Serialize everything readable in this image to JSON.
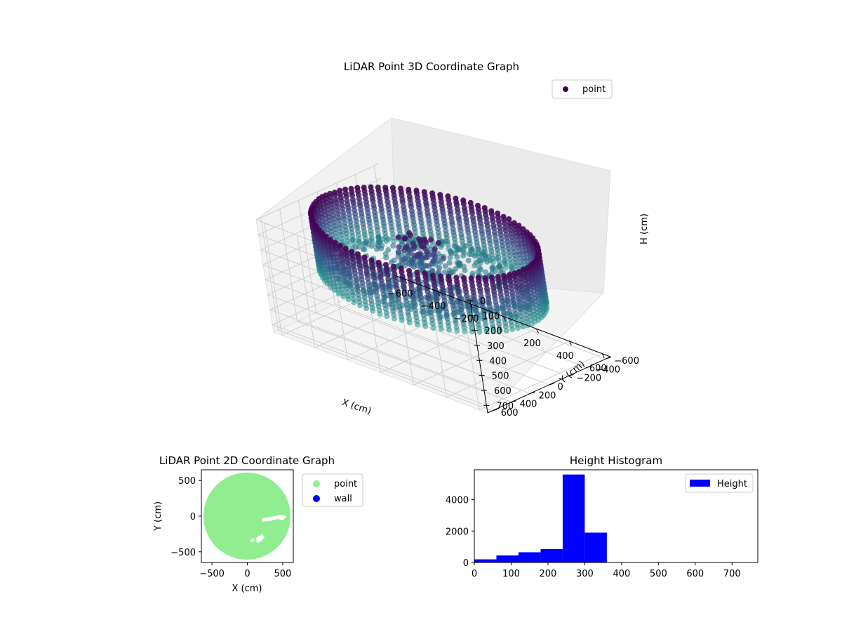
{
  "figure": {
    "background": "#ffffff"
  },
  "chart_data": [
    {
      "type": "scatter",
      "projection": "3d",
      "title": "LiDAR Point 3D Coordinate Graph",
      "xlabel": "X (cm)",
      "ylabel": "Y (cm)",
      "zlabel": "H (cm)",
      "xlim": [
        -650,
        650
      ],
      "ylim": [
        -650,
        650
      ],
      "zlim": [
        750,
        0
      ],
      "z_inverted": true,
      "x_ticks": [
        -600,
        -400,
        -200,
        0,
        200,
        400,
        600
      ],
      "x_tick_labels": [
        "−600",
        "−400",
        "−200",
        "0",
        "200",
        "400",
        "600"
      ],
      "y_ticks": [
        -600,
        -400,
        -200,
        0,
        200,
        400,
        600
      ],
      "y_tick_labels": [
        "−600",
        "−400",
        "−200",
        "0",
        "200",
        "400",
        "600"
      ],
      "z_ticks": [
        0,
        100,
        200,
        300,
        400,
        500,
        600,
        700
      ],
      "z_tick_labels": [
        "0",
        "100",
        "200",
        "300",
        "400",
        "500",
        "600",
        "700"
      ],
      "grid": true,
      "colormap": "viridis",
      "color_high": "#440154",
      "color_mid": "#3b528b",
      "color_low": "#21918c",
      "legend": {
        "position": "top-right",
        "entries": [
          {
            "label": "point",
            "color": "#440154",
            "marker": "circle"
          }
        ]
      },
      "series": [
        {
          "name": "point",
          "description_values": {
            "outer_wall_radius_cm": 600,
            "wall_height_range_cm": [
              0,
              360
            ],
            "floor_height_cm": 300,
            "center_object_height_cm": [
              40,
              250
            ]
          }
        }
      ]
    },
    {
      "type": "scatter",
      "title": "LiDAR Point 2D Coordinate Graph",
      "xlabel": "X (cm)",
      "ylabel": "Y (cm)",
      "xlim": [
        -650,
        650
      ],
      "ylim": [
        -650,
        650
      ],
      "x_ticks": [
        -500,
        0,
        500
      ],
      "x_tick_labels": [
        "−500",
        "0",
        "500"
      ],
      "y_ticks": [
        -500,
        0,
        500
      ],
      "y_tick_labels": [
        "−500",
        "0",
        "500"
      ],
      "grid": false,
      "legend": {
        "position": "outside-right",
        "entries": [
          {
            "label": "point",
            "color": "#90ee90"
          },
          {
            "label": "wall",
            "color": "#0000ff"
          }
        ]
      },
      "series": [
        {
          "name": "point",
          "color": "#90ee90",
          "shape": "disk",
          "center": [
            0,
            0
          ],
          "radius": 620
        },
        {
          "name": "wall",
          "color": "#0000ff",
          "points": []
        }
      ]
    },
    {
      "type": "bar",
      "subtype": "histogram",
      "title": "Height Histogram",
      "xlabel": "",
      "ylabel": "",
      "xlim": [
        0,
        770
      ],
      "ylim": [
        0,
        5900
      ],
      "x_ticks": [
        0,
        100,
        200,
        300,
        400,
        500,
        600,
        700
      ],
      "x_tick_labels": [
        "0",
        "100",
        "200",
        "300",
        "400",
        "500",
        "600",
        "700"
      ],
      "y_ticks": [
        0,
        2000,
        4000
      ],
      "y_tick_labels": [
        "0",
        "2000",
        "4000"
      ],
      "bin_edges": [
        0,
        60,
        120,
        180,
        240,
        300,
        360,
        420,
        480,
        540,
        600,
        660,
        720,
        770
      ],
      "values": [
        200,
        450,
        650,
        850,
        5600,
        1900,
        0,
        0,
        0,
        0,
        0,
        0,
        0
      ],
      "color": "#0000ff",
      "legend": {
        "position": "top-right",
        "entries": [
          {
            "label": "Height",
            "color": "#0000ff"
          }
        ]
      }
    }
  ]
}
